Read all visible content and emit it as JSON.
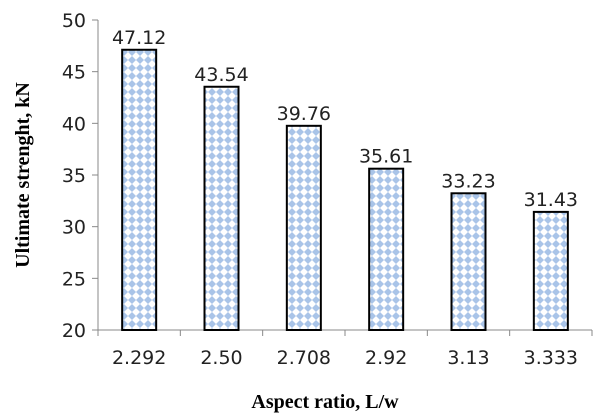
{
  "chart_data": {
    "type": "bar",
    "categories": [
      "2.292",
      "2.50",
      "2.708",
      "2.92",
      "3.13",
      "3.333"
    ],
    "values": [
      47.12,
      43.54,
      39.76,
      35.61,
      33.23,
      31.43
    ],
    "data_labels": [
      "47.12",
      "43.54",
      "39.76",
      "35.61",
      "33.23",
      "31.43"
    ],
    "xlabel": "Aspect ratio, L/w",
    "ylabel": "Ultimate strenght, kN",
    "ylim": [
      20,
      50
    ],
    "yticks": [
      20,
      25,
      30,
      35,
      40,
      45,
      50
    ],
    "grid": false,
    "legend": "none",
    "bar_fill": "diamond-pattern",
    "colors": {
      "bar_outline": "#000000",
      "pattern_primary": "#a9c4e8",
      "pattern_secondary": "#ffffff",
      "axis": "#888888"
    }
  }
}
